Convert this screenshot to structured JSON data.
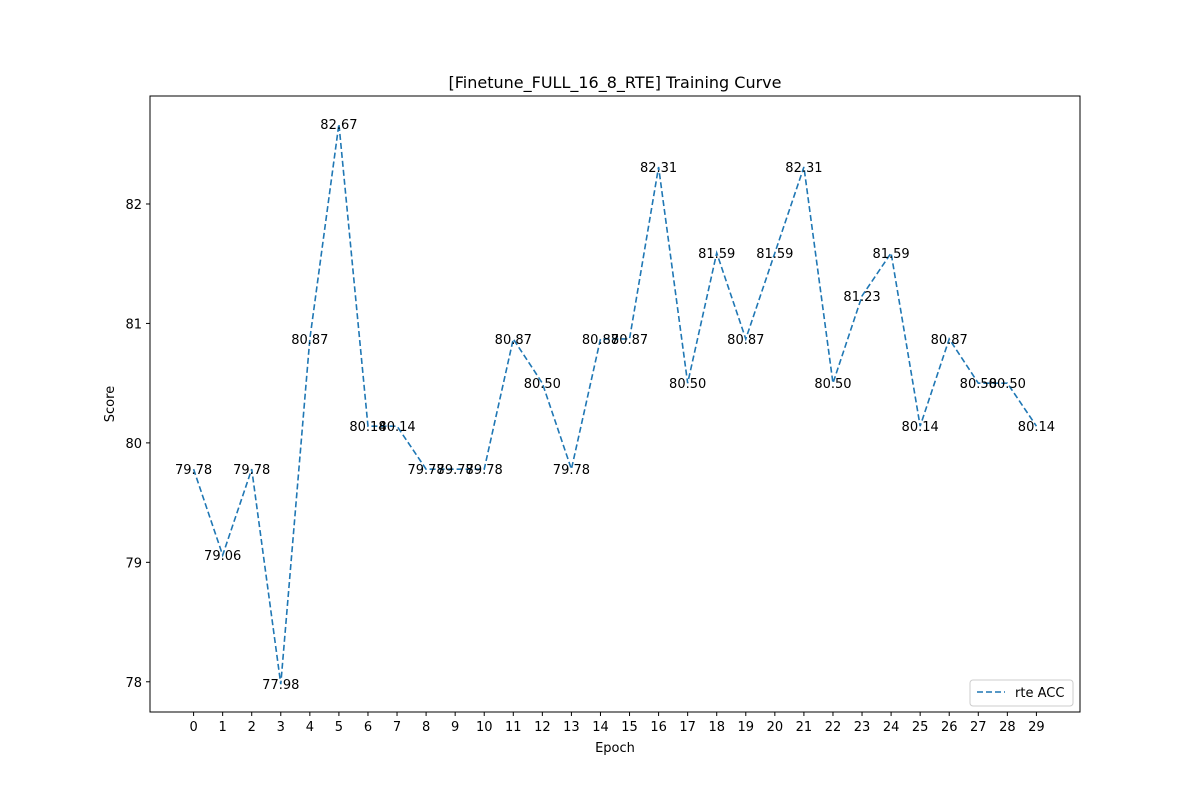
{
  "chart_data": {
    "type": "line",
    "title": "[Finetune_FULL_16_8_RTE] Training Curve",
    "xlabel": "Epoch",
    "ylabel": "Score",
    "x": [
      0,
      1,
      2,
      3,
      4,
      5,
      6,
      7,
      8,
      9,
      10,
      11,
      12,
      13,
      14,
      15,
      16,
      17,
      18,
      19,
      20,
      21,
      22,
      23,
      24,
      25,
      26,
      27,
      28,
      29
    ],
    "series": [
      {
        "name": "rte ACC",
        "color": "#1f77b4",
        "line_style": "dashed",
        "values": [
          79.78,
          79.06,
          79.78,
          77.98,
          80.87,
          82.67,
          80.14,
          80.14,
          79.78,
          79.78,
          79.78,
          80.87,
          80.5,
          79.78,
          80.87,
          80.87,
          82.31,
          80.5,
          81.59,
          80.87,
          81.59,
          82.31,
          80.5,
          81.23,
          81.59,
          80.14,
          80.87,
          80.5,
          80.5,
          80.14
        ],
        "point_labels": [
          "79.78",
          "79.06",
          "79.78",
          "77.98",
          "80.87",
          "82.67",
          "80.14",
          "80.14",
          "79.78",
          "79.78",
          "79.78",
          "80.87",
          "80.50",
          "79.78",
          "80.87",
          "80.87",
          "82.31",
          "80.50",
          "81.59",
          "80.87",
          "81.59",
          "82.31",
          "80.50",
          "81.23",
          "81.59",
          "80.14",
          "80.87",
          "80.50",
          "80.50",
          "80.14"
        ]
      }
    ],
    "xlim": [
      -1.5,
      30.5
    ],
    "ylim": [
      77.747,
      82.904
    ],
    "yticks": [
      78,
      79,
      80,
      81,
      82
    ],
    "xticks": [
      0,
      1,
      2,
      3,
      4,
      5,
      6,
      7,
      8,
      9,
      10,
      11,
      12,
      13,
      14,
      15,
      16,
      17,
      18,
      19,
      20,
      21,
      22,
      23,
      24,
      25,
      26,
      27,
      28,
      29
    ],
    "grid": false,
    "legend_position": "bottom-right"
  }
}
